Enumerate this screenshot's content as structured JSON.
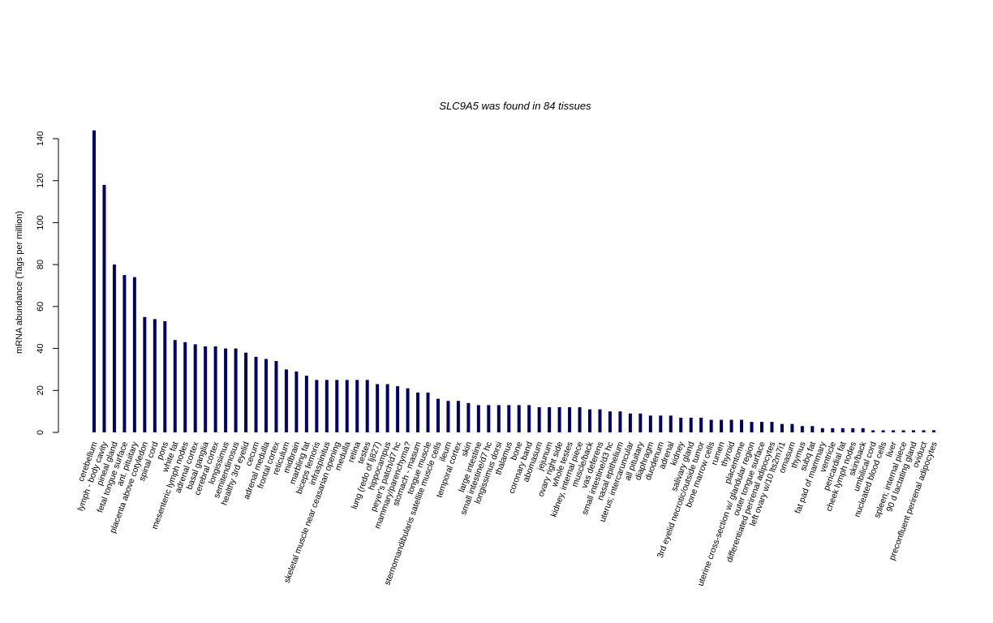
{
  "chart_data": {
    "type": "bar",
    "title": "SLC9A5  was found in  84  tissues",
    "xlabel": "",
    "ylabel": "mRNA abundance (Tags per million)",
    "ylim": [
      0,
      145
    ],
    "yticks": [
      0,
      20,
      40,
      60,
      80,
      100,
      120,
      140
    ],
    "grid": false,
    "bar_color": "#000066",
    "categories": [
      "cerebellum",
      "lymph - body cavity",
      "pineal gland",
      "fetal tongue surface",
      "ant. pituitary",
      "placenta above cotyledon",
      "spinal cord",
      "pons",
      "white fat",
      "mesenteric lymph nodes",
      "adrenal cortex",
      "basal ganglia",
      "cerebral cortex",
      "longissimus",
      "semitendinosus",
      "healthy 3rd eyelid",
      "cecum",
      "adrenal medulla",
      "frontal cortex",
      "reticulum",
      "midbrain",
      "marbling fat",
      "biceps femoris",
      "infraspinitus",
      "skeletal muscle near ceasarian opening",
      "medulla",
      "retina",
      "testes",
      "lung (redo of lj827)",
      "hippocampus",
      "peyer's patch/d7 hc",
      "mammary/parenchyma?",
      "stomach - masum",
      "tongue muscle",
      "sternomandibularis satellite muscle cells",
      "ileum",
      "temporal cortex",
      "skin",
      "large intestine",
      "small intestine/d7 hc",
      "longissimus dorsi",
      "thalamus",
      "bone",
      "coronary band",
      "abomasum",
      "jejunum",
      "ovary right side",
      "whole testes",
      "kidney, internal piece",
      "muscle/back",
      "vas deferens",
      "small intestine/d3 hc",
      "nasal epithelium",
      "uterus; intercaruncular",
      "all pituitary",
      "diaphragm",
      "duodenum",
      "adrenal",
      "kidney",
      "salivary gland",
      "3rd eyelid necrotic/outside tumor",
      "bone marrow cells",
      "rumen",
      "thyroid",
      "placentome",
      "uterine cross-section w/ glandular region",
      "outer tongue surface",
      "differentiated perirenal adipocytes",
      "left ovary w/10 lts2m7i1",
      "omasum",
      "thymus",
      "subq fat",
      "fat pad of mammary",
      "ventricle",
      "pericardial fat",
      "cheek lymph nodes",
      "skin/back",
      "umbilical cord",
      "nucleated blood cells",
      "liver",
      "spleen; internal piece",
      "90 d lactating gland",
      "oviduct",
      "preconfluent perirenal adipocytes"
    ],
    "values": [
      144,
      118,
      80,
      75,
      74,
      55,
      54,
      53,
      44,
      43,
      42,
      41,
      41,
      40,
      40,
      38,
      36,
      35,
      34,
      30,
      29,
      27,
      25,
      25,
      25,
      25,
      25,
      25,
      23,
      23,
      22,
      21,
      19,
      19,
      16,
      15,
      15,
      14,
      13,
      13,
      13,
      13,
      13,
      13,
      12,
      12,
      12,
      12,
      12,
      11,
      11,
      10,
      10,
      9,
      9,
      8,
      8,
      8,
      7,
      7,
      7,
      6,
      6,
      6,
      6,
      5,
      5,
      5,
      4,
      4,
      3,
      3,
      2,
      2,
      2,
      2,
      2,
      1,
      1,
      1,
      1,
      1,
      1,
      1
    ]
  }
}
